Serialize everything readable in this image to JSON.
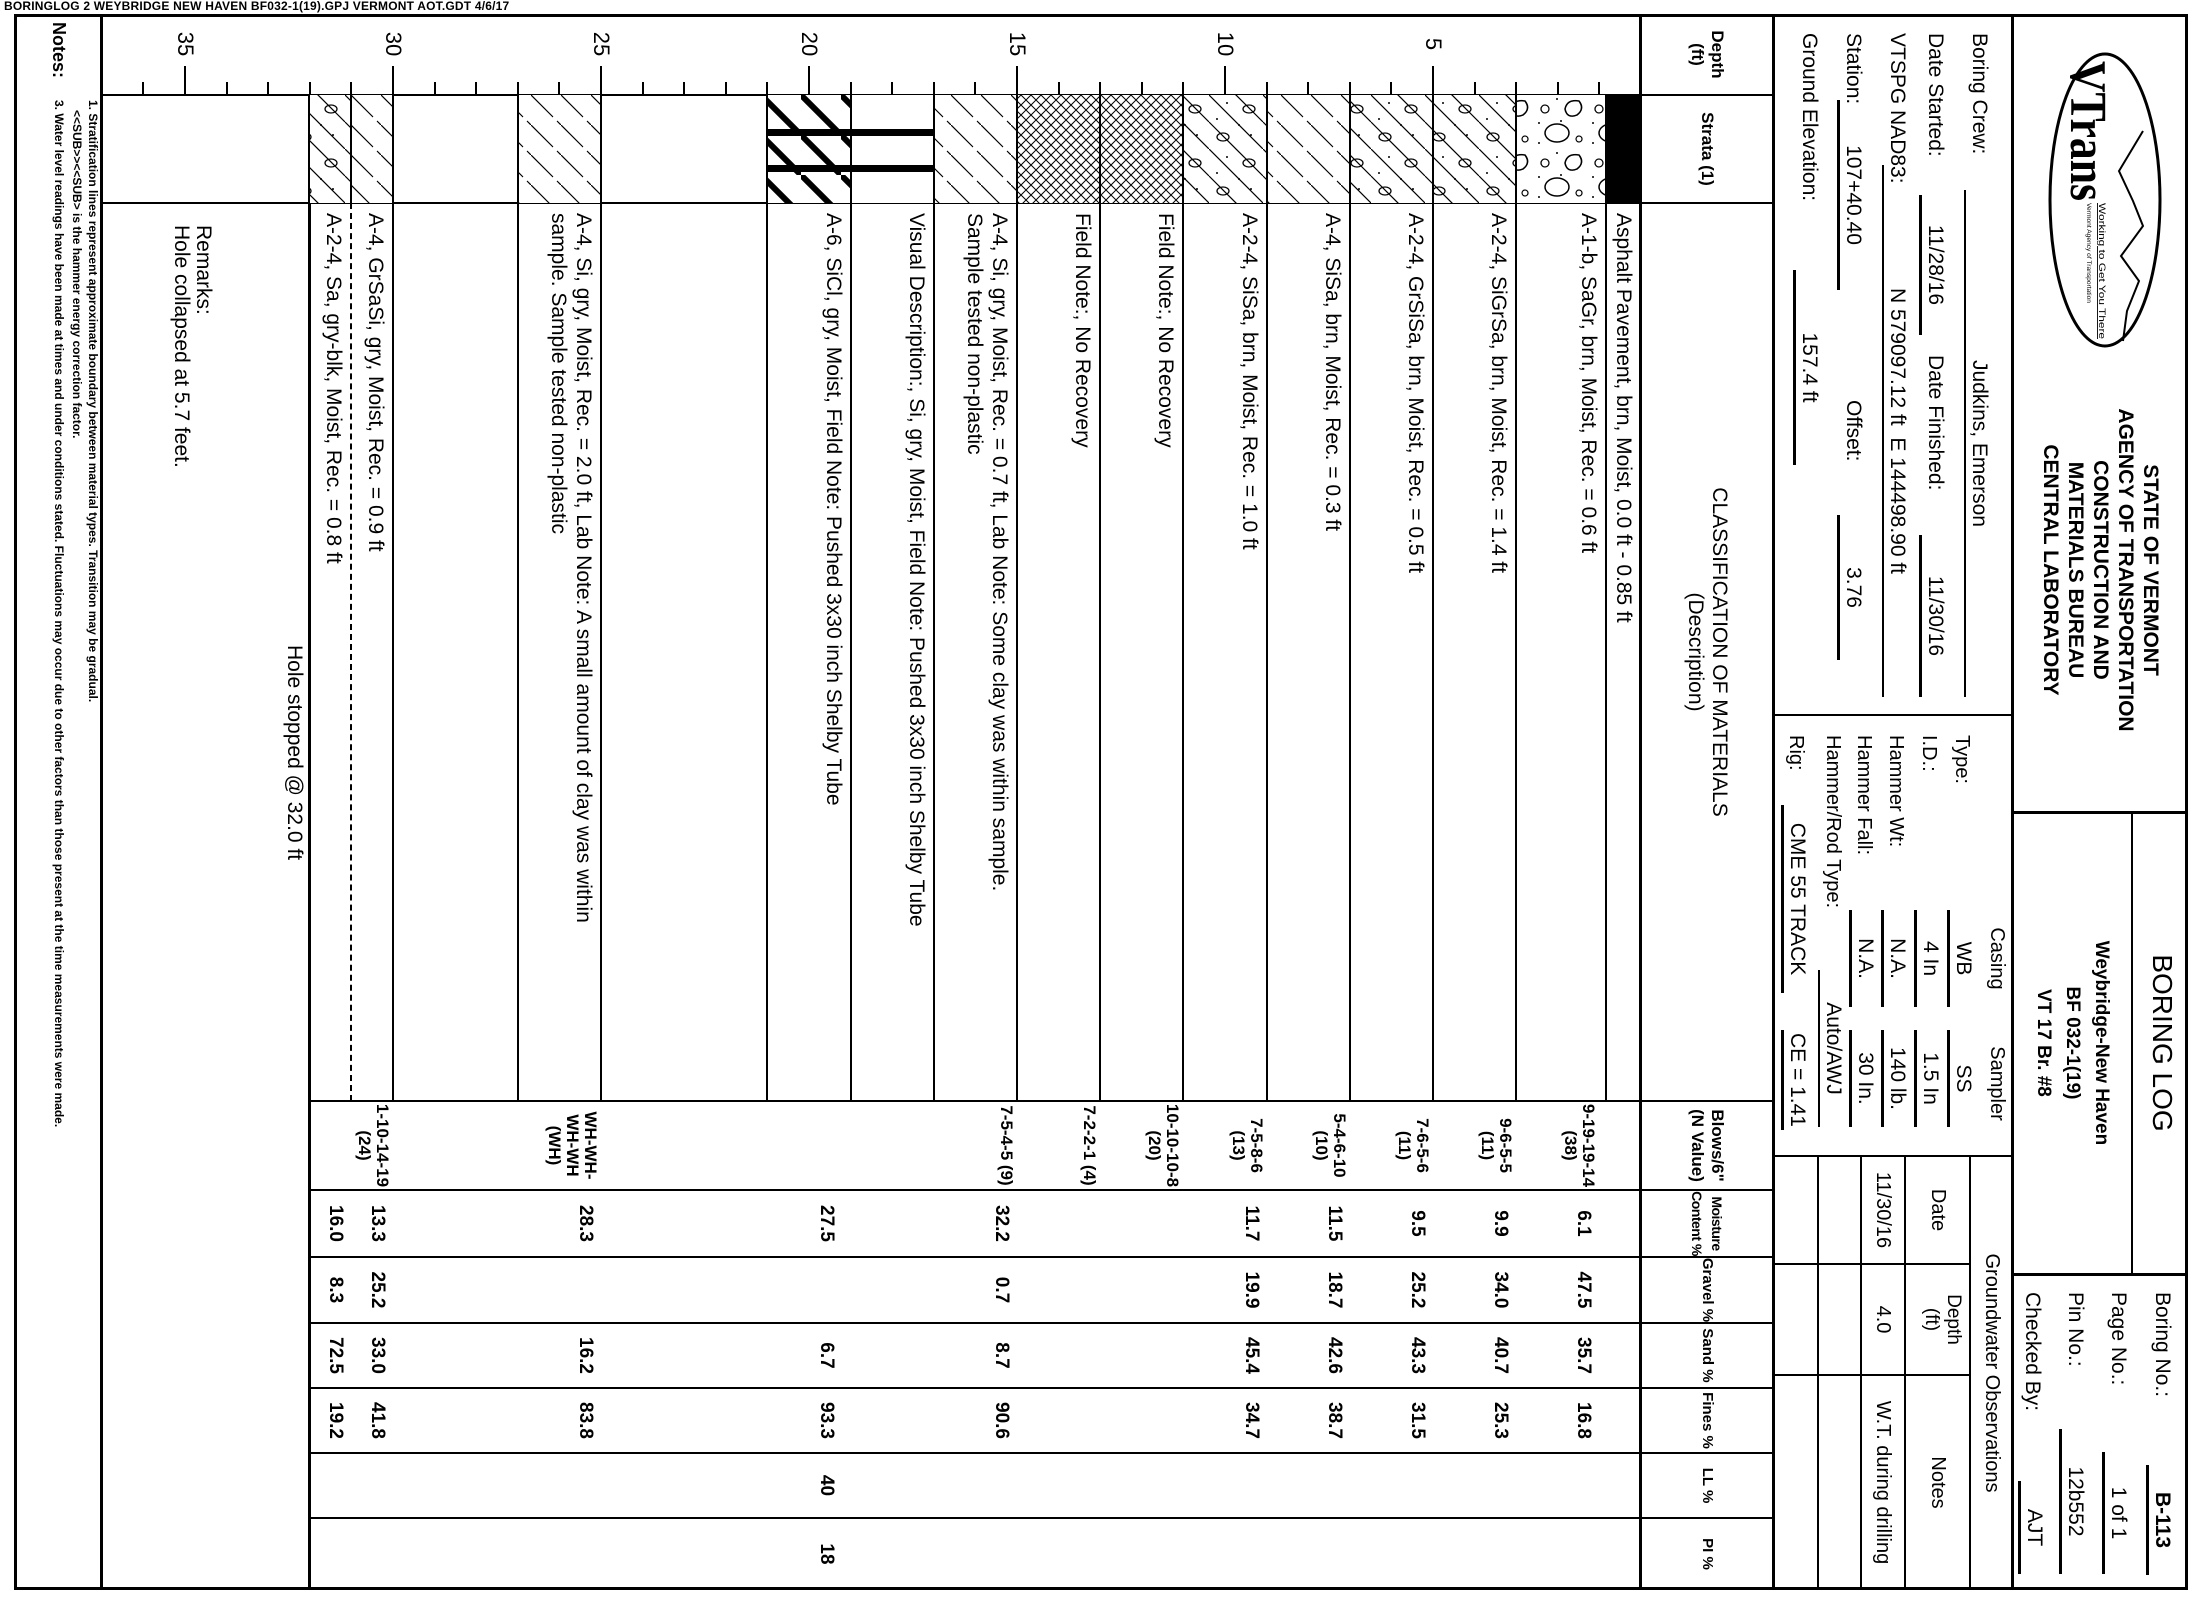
{
  "file_header": "BORINGLOG 2 WEYBRIDGE NEW HAVEN BF032-1(19).GPJ  VERMONT AOT.GDT  4/6/17",
  "logo": {
    "text": "VTrans",
    "tagline": "Working to Get You There",
    "subtitle": "Vermont Agency of Transportation"
  },
  "agency": [
    "STATE OF VERMONT",
    "AGENCY OF TRANSPORTATION",
    "CONSTRUCTION AND",
    "MATERIALS BUREAU",
    "CENTRAL LABORATORY"
  ],
  "title": {
    "heading": "BORING LOG",
    "project": [
      "Weybridge-New Haven",
      "BF 032-1(19)",
      "VT 17 Br. #8"
    ]
  },
  "boring_info": {
    "boring_no_label": "Boring No.:",
    "boring_no": "B-113",
    "page_label": "Page No.:",
    "page": "1 of 1",
    "pin_label": "Pin No.:",
    "pin": "12b552",
    "checked_label": "Checked By:",
    "checked": "AJT"
  },
  "crew": {
    "crew_label": "Boring Crew:",
    "crew": "Judkins, Emerson",
    "started_label": "Date Started:",
    "started": "11/28/16",
    "finished_label": "Date Finished:",
    "finished": "11/30/16",
    "coord_label": "VTSPG NAD83:",
    "northing": "N 579097.12 ft",
    "easting": "E 144498.90 ft",
    "station_label": "Station:",
    "station": "107+40.40",
    "offset_label": "Offset:",
    "offset": "3.76",
    "elevation_label": "Ground Elevation:",
    "elevation": "157.4 ft"
  },
  "equipment": {
    "casing_header": "Casing",
    "sampler_header": "Sampler",
    "type_label": "Type:",
    "casing_type": "WB",
    "sampler_type": "SS",
    "id_label": "I.D.:",
    "casing_id": "4 In",
    "sampler_id": "1.5 In",
    "hammer_wt_label": "Hammer Wt:",
    "casing_hammer_wt": "N.A.",
    "sampler_hammer_wt": "140 lb.",
    "hammer_fall_label": "Hammer Fall:",
    "casing_hammer_fall": "N.A.",
    "sampler_hammer_fall": "30 In.",
    "rod_type_label": "Hammer/Rod Type:",
    "rod_type": "Auto/AWJ",
    "rig_label": "Rig:",
    "rig": "CME 55 TRACK",
    "ce": "CE = 1.41"
  },
  "groundwater": {
    "title": "Groundwater Observations",
    "headers": [
      "Date",
      "Depth",
      "(ft)",
      "Notes"
    ],
    "rows": [
      {
        "date": "11/30/16",
        "depth": "4.0",
        "notes": "W.T. during drilling"
      }
    ]
  },
  "columns": {
    "depth": [
      "Depth",
      "(ft)"
    ],
    "strata": "Strata (1)",
    "classification": [
      "CLASSIFICATION OF MATERIALS",
      "(Description)"
    ],
    "blows": [
      "Blows/6\"",
      "(N Value)"
    ],
    "moisture": [
      "Moisture",
      "Content %"
    ],
    "gravel": "Gravel %",
    "sand": "Sand %",
    "fines": "Fines %",
    "ll": "LL %",
    "pi": "PI %"
  },
  "log": {
    "depth_unit": "ft",
    "depth_labels": [
      5,
      10,
      15,
      20,
      25,
      30,
      35
    ],
    "layers": [
      {
        "from": 0,
        "to": 0.85,
        "pattern": "asphalt",
        "lines": [
          "Asphalt Pavement, brn, Moist, 0.0 ft - 0.85 ft"
        ]
      },
      {
        "from": 0.85,
        "to": 3,
        "pattern": "gravel",
        "lines": [
          "A-1-b, SaGr, brn, Moist, Rec. = 0.6 ft"
        ]
      },
      {
        "from": 3,
        "to": 5,
        "pattern": "silty-sand-gravel",
        "lines": [
          "A-2-4, SiGrSa, brn, Moist, Rec. = 1.4 ft"
        ]
      },
      {
        "from": 5,
        "to": 7,
        "pattern": "silty-sand-gravel",
        "lines": [
          "A-2-4, GrSiSa, brn, Moist, Rec. = 0.5 ft"
        ]
      },
      {
        "from": 7,
        "to": 9,
        "pattern": "silt",
        "lines": [
          "A-4, SiSa, brn, Moist, Rec. = 0.3 ft"
        ]
      },
      {
        "from": 9,
        "to": 11,
        "pattern": "silty-sand-gravel",
        "lines": [
          "A-2-4, SiSa, brn, Moist, Rec. = 1.0 ft"
        ]
      },
      {
        "from": 11,
        "to": 13,
        "pattern": "no-recovery",
        "lines": [
          "Field Note:, No Recovery"
        ]
      },
      {
        "from": 13,
        "to": 15,
        "pattern": "no-recovery",
        "lines": [
          "Field Note:, No Recovery"
        ]
      },
      {
        "from": 15,
        "to": 17,
        "pattern": "silt",
        "lines": [
          "A-4, Si, gry, Moist, Rec. = 0.7 ft, Lab Note: Some clay was within sample.",
          "Sample tested non-plastic"
        ]
      },
      {
        "from": 17,
        "to": 19,
        "pattern": "clay-banded",
        "lines": [
          "Visual Description:, Si, gry, Moist, Field Note: Pushed 3x30 inch Shelby Tube"
        ]
      },
      {
        "from": 19,
        "to": 21,
        "pattern": "clay",
        "lines": [
          "A-6, SiCl, gry, Moist, Field Note: Pushed 3x30 inch Shelby Tube"
        ]
      },
      {
        "from": 21,
        "to": 25,
        "pattern": "none",
        "lines": []
      },
      {
        "from": 25,
        "to": 27,
        "pattern": "silt",
        "lines": [
          "A-4, Si, gry, Moist, Rec. = 2.0 ft, Lab Note: A small amount of clay was within",
          "sample. Sample tested non-plastic"
        ]
      },
      {
        "from": 27,
        "to": 30,
        "pattern": "none",
        "lines": []
      },
      {
        "from": 30,
        "to": 31,
        "pattern": "silt",
        "lines": [
          "A-4, GrSaSi, gry, Moist, Rec. = 0.9 ft"
        ]
      },
      {
        "from": 31,
        "to": 32,
        "pattern": "silty-sand-gravel",
        "top_line": "dashed",
        "lines": [
          "A-2-4, Sa, gry-blk, Moist, Rec. = 0.8 ft"
        ]
      }
    ],
    "samples": [
      {
        "depth": 1,
        "blows": "9-19-19-14 (38)",
        "moisture": "6.1",
        "gravel": "47.5",
        "sand": "35.7",
        "fines": "16.8"
      },
      {
        "depth": 3,
        "blows": "9-6-5-5 (11)",
        "moisture": "9.9",
        "gravel": "34.0",
        "sand": "40.7",
        "fines": "25.3"
      },
      {
        "depth": 5,
        "blows": "7-6-5-6 (11)",
        "moisture": "9.5",
        "gravel": "25.2",
        "sand": "43.3",
        "fines": "31.5"
      },
      {
        "depth": 7,
        "blows": "5-4-6-10 (10)",
        "moisture": "11.5",
        "gravel": "18.7",
        "sand": "42.6",
        "fines": "38.7"
      },
      {
        "depth": 9,
        "blows": "7-5-8-6 (13)",
        "moisture": "11.7",
        "gravel": "19.9",
        "sand": "45.4",
        "fines": "34.7"
      },
      {
        "depth": 11,
        "blows": "10-10-10-8 (20)"
      },
      {
        "depth": 13,
        "blows": "7-2-2-1 (4)"
      },
      {
        "depth": 15,
        "blows": "7-5-4-5 (9)",
        "moisture": "32.2",
        "gravel": "0.7",
        "sand": "8.7",
        "fines": "90.6"
      },
      {
        "depth": 19.2,
        "moisture": "27.5",
        "sand": "6.7",
        "fines": "93.3",
        "ll": "40",
        "pi": "18"
      },
      {
        "depth": 25,
        "blows": "WH-WH-WH-WH (WH)",
        "moisture": "28.3",
        "sand": "16.2",
        "fines": "83.8"
      },
      {
        "depth": 30,
        "blows": "1-10-14-19 (24)",
        "moisture": "13.3",
        "gravel": "25.2",
        "sand": "33.0",
        "fines": "41.8"
      },
      {
        "depth": 31,
        "moisture": "16.0",
        "gravel": "8.3",
        "sand": "72.5",
        "fines": "19.2"
      }
    ],
    "end_note": "Hole stopped @ 32.0 ft",
    "remarks_label": "Remarks:",
    "remarks": "Hole collapsed at 5.7 feet."
  },
  "notes": {
    "label": "Notes:",
    "lines": [
      "1. Stratification lines represent approximate boundary between material types. Transition may be gradual.",
      "<<SUB>><<SUB> is the hammer energy correction factor.",
      "3. Water level readings have been made at times and under conditions stated. Fluctuations may occur due to other factors than those present at the time measurements were made."
    ]
  }
}
